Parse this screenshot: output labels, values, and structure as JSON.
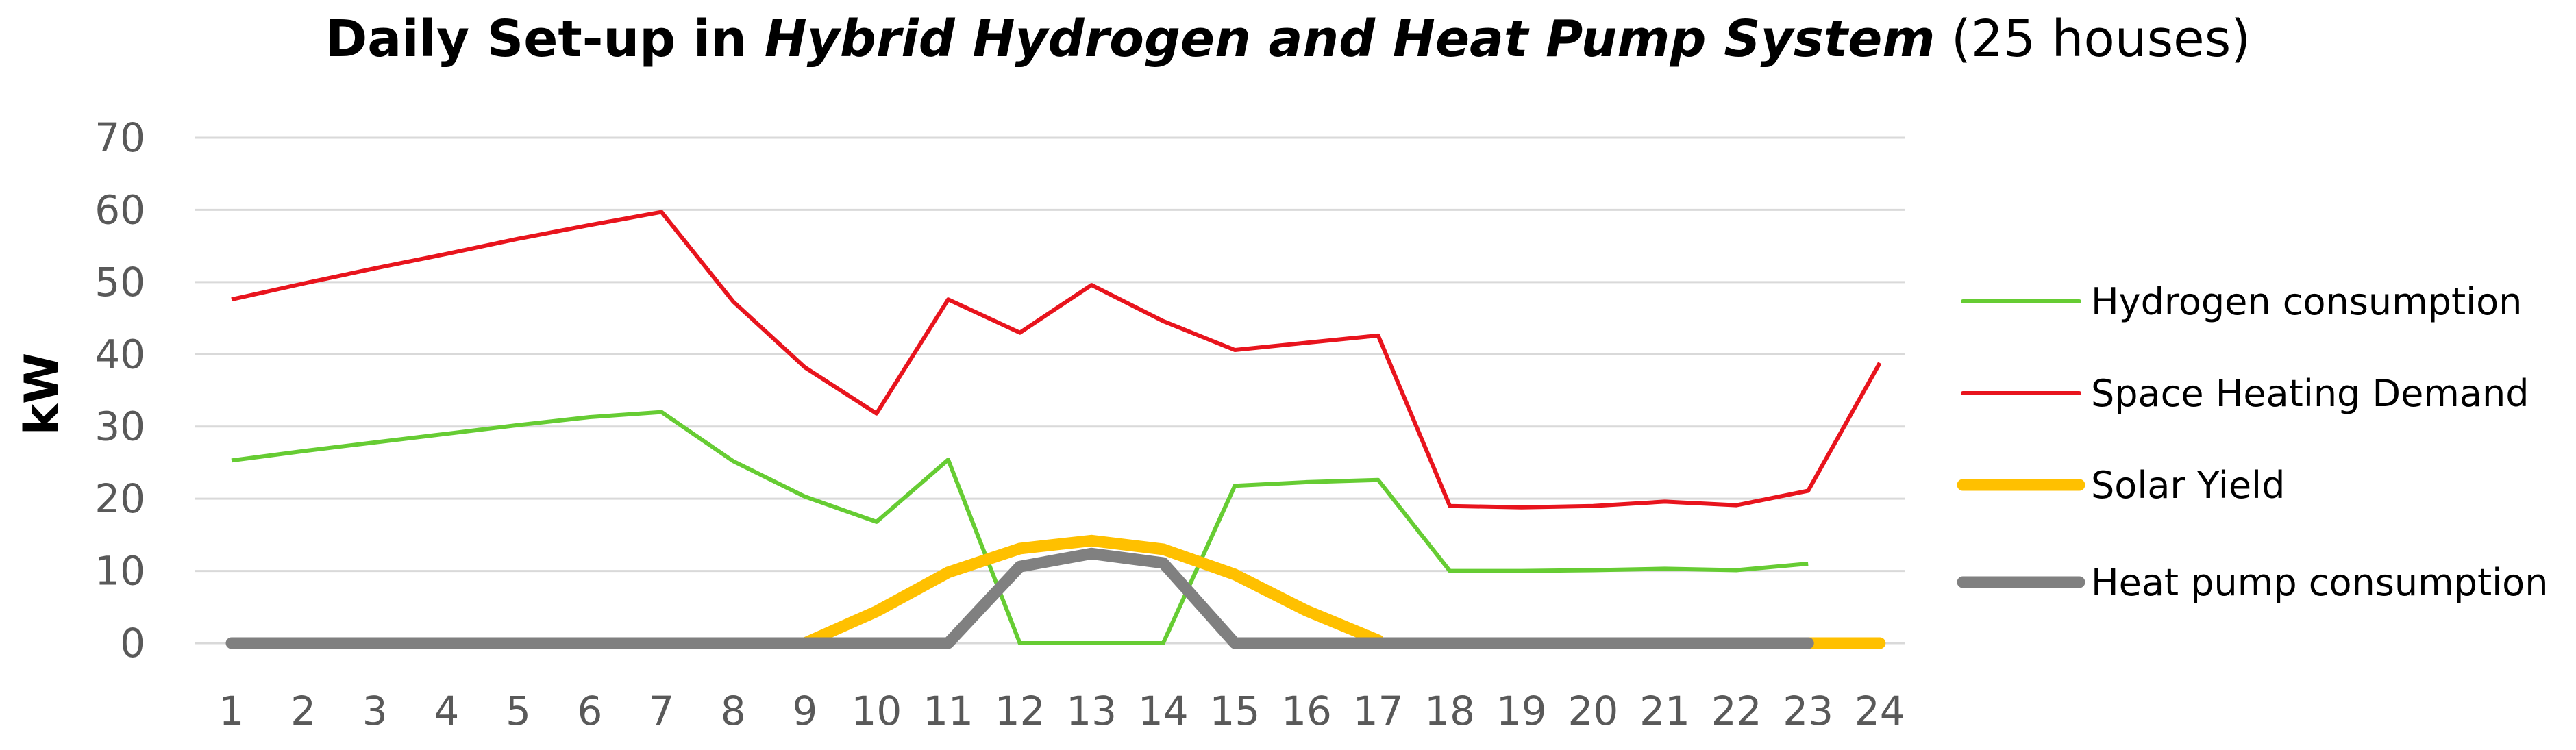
{
  "chart_data": {
    "type": "line",
    "title_parts": [
      {
        "text": "Daily Set-up in ",
        "style": "bold"
      },
      {
        "text": "Hybrid Hydrogen and Heat Pump System",
        "style": "italic"
      },
      {
        "text": " (25 houses)",
        "style": "normal"
      }
    ],
    "xlabel": "",
    "ylabel": "kW",
    "ylim": [
      0,
      70
    ],
    "yticks": [
      0,
      10,
      20,
      30,
      40,
      50,
      60,
      70
    ],
    "categories": [
      "1",
      "2",
      "3",
      "4",
      "5",
      "6",
      "7",
      "8",
      "9",
      "10",
      "11",
      "12",
      "13",
      "14",
      "15",
      "16",
      "17",
      "18",
      "19",
      "20",
      "21",
      "22",
      "23",
      "24"
    ],
    "grid": true,
    "legend_position": "right",
    "series": [
      {
        "name": "Hydrogen consumption",
        "color": "#66cc33",
        "weight": "thin",
        "values": [
          25.3,
          26.6,
          27.8,
          29.0,
          30.2,
          31.3,
          32.0,
          25.2,
          20.3,
          16.8,
          25.4,
          0.0,
          0.0,
          0.0,
          21.8,
          22.3,
          22.6,
          10.0,
          10.0,
          10.1,
          10.3,
          10.1,
          11.0,
          null
        ]
      },
      {
        "name": "Space Heating Demand",
        "color": "#e8141d",
        "weight": "thin",
        "values": [
          47.6,
          49.8,
          51.9,
          53.9,
          56.0,
          57.9,
          59.7,
          47.3,
          38.2,
          31.8,
          47.6,
          43.0,
          49.6,
          44.6,
          40.6,
          41.6,
          42.6,
          19.0,
          18.8,
          19.0,
          19.6,
          19.1,
          21.1,
          38.8
        ]
      },
      {
        "name": "Solar Yield",
        "color": "#ffc000",
        "weight": "thick",
        "values": [
          null,
          null,
          null,
          null,
          null,
          null,
          null,
          null,
          0.0,
          4.4,
          9.8,
          13.1,
          14.2,
          13.0,
          9.5,
          4.5,
          0.4,
          null,
          null,
          null,
          null,
          null,
          0.0,
          0.0
        ]
      },
      {
        "name": "Heat pump consumption",
        "color": "#808080",
        "weight": "thick",
        "values": [
          0,
          0,
          0,
          0,
          0,
          0,
          0,
          0,
          0,
          0,
          0,
          10.6,
          12.4,
          11.1,
          0,
          0,
          0,
          0,
          0,
          0,
          0,
          0,
          0,
          null
        ]
      }
    ]
  }
}
